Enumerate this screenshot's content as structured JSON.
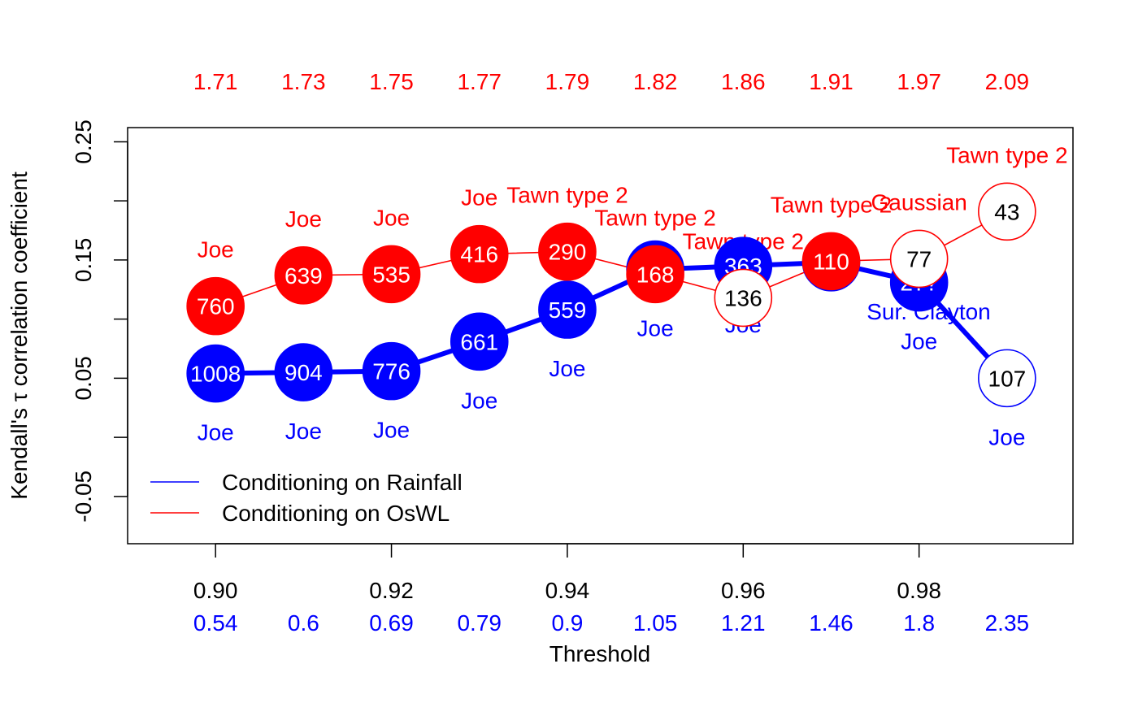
{
  "chart_data": {
    "type": "line",
    "title": "",
    "xlabel": "Threshold",
    "ylabel": "Kendall's τ correlation coefficient",
    "xlim": [
      0.89,
      0.9975
    ],
    "ylim": [
      -0.09,
      0.262
    ],
    "x_ticks": [
      "0.90",
      "0.92",
      "0.94",
      "0.96",
      "0.98"
    ],
    "x_tick_values": [
      0.9,
      0.92,
      0.94,
      0.96,
      0.98
    ],
    "y_ticks": [
      "-0.05",
      "0.05",
      "0.15",
      "0.25"
    ],
    "y_tick_values": [
      -0.05,
      0.05,
      0.15,
      0.25
    ],
    "x": [
      0.9,
      0.91,
      0.92,
      0.93,
      0.94,
      0.95,
      0.96,
      0.97,
      0.98,
      0.99
    ],
    "top_axis_values": [
      "1.71",
      "1.73",
      "1.75",
      "1.77",
      "1.79",
      "1.82",
      "1.86",
      "1.91",
      "1.97",
      "2.09"
    ],
    "top_axis_color": "#ff0000",
    "bottom_axis_values": [
      "0.54",
      "0.6",
      "0.69",
      "0.79",
      "0.9",
      "1.05",
      "1.21",
      "1.46",
      "1.8",
      "2.35"
    ],
    "bottom_axis_color": "#0000ff",
    "legend_position": "bottom-left",
    "series": [
      {
        "name": "Conditioning on Rainfall",
        "color": "#0000ff",
        "y": [
          0.054,
          0.055,
          0.056,
          0.081,
          0.108,
          0.142,
          0.145,
          0.148,
          0.131,
          0.05
        ],
        "sample_sizes": [
          "1008",
          "904",
          "776",
          "661",
          "559",
          "",
          "363",
          "",
          "2??",
          "107"
        ],
        "copulas": [
          "Joe",
          "Joe",
          "Joe",
          "Joe",
          "Joe",
          "Joe",
          "Joe",
          "Sur. Clayton",
          "Joe",
          "Joe"
        ],
        "filled": [
          true,
          true,
          true,
          true,
          true,
          true,
          true,
          true,
          true,
          false
        ]
      },
      {
        "name": "Conditioning on OsWL",
        "color": "#ff0000",
        "y": [
          0.111,
          0.137,
          0.138,
          0.155,
          0.157,
          0.138,
          0.118,
          0.149,
          0.151,
          0.191
        ],
        "sample_sizes": [
          "760",
          "639",
          "535",
          "416",
          "290",
          "168",
          "136",
          "110",
          "77",
          "43"
        ],
        "copulas": [
          "Joe",
          "Joe",
          "Joe",
          "Joe",
          "Tawn type 2",
          "Tawn type 2",
          "Tawn type 2",
          "Tawn type 2",
          "Gaussian",
          "Tawn type 2"
        ],
        "filled": [
          true,
          true,
          true,
          true,
          true,
          true,
          false,
          true,
          false,
          false
        ]
      }
    ]
  }
}
